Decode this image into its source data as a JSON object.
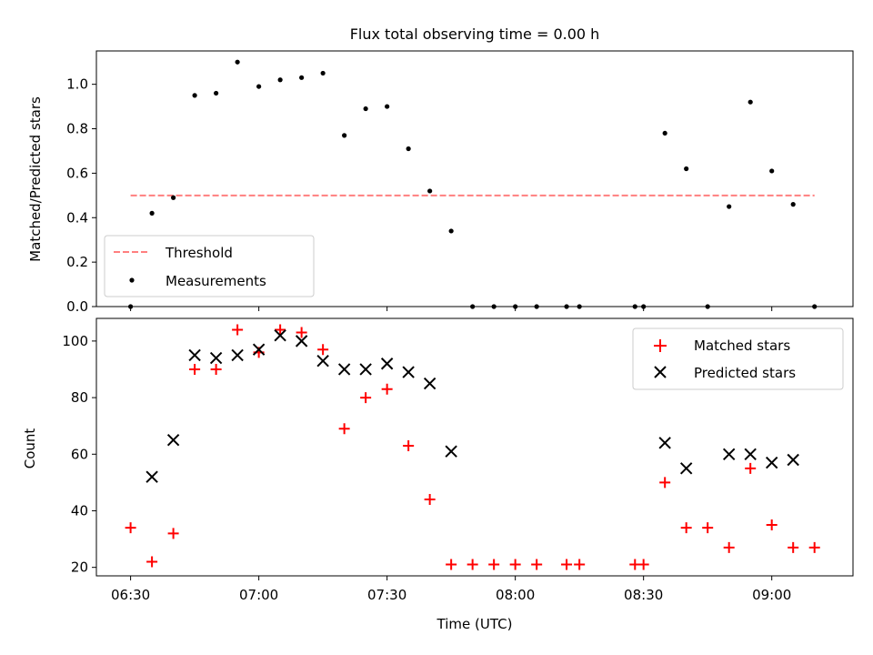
{
  "chart_data": [
    {
      "type": "scatter",
      "title": "Flux total observing time = 0.00 h",
      "xlabel": "",
      "ylabel": "Matched/Predicted stars",
      "ylim": [
        0,
        1.15
      ],
      "yticks": [
        "0.0",
        "0.2",
        "0.4",
        "0.6",
        "0.8",
        "1.0"
      ],
      "threshold": {
        "name": "Threshold",
        "value": 0.5,
        "x_start": "06:30",
        "x_end": "09:10",
        "color": "#ff7f7f"
      },
      "series": [
        {
          "name": "Measurements",
          "color": "#000000",
          "x": [
            "06:30",
            "06:35",
            "06:40",
            "06:45",
            "06:50",
            "06:55",
            "07:00",
            "07:05",
            "07:10",
            "07:15",
            "07:20",
            "07:25",
            "07:30",
            "07:35",
            "07:40",
            "07:45",
            "07:50",
            "07:55",
            "08:00",
            "08:05",
            "08:12",
            "08:15",
            "08:28",
            "08:30",
            "08:35",
            "08:40",
            "08:45",
            "08:50",
            "08:55",
            "09:00",
            "09:05",
            "09:10"
          ],
          "values": [
            0.0,
            0.42,
            0.49,
            0.95,
            0.96,
            1.1,
            0.99,
            1.02,
            1.03,
            1.05,
            0.77,
            0.89,
            0.9,
            0.71,
            0.52,
            0.34,
            0.0,
            0.0,
            0.0,
            0.0,
            0.0,
            0.0,
            0.0,
            0.0,
            0.78,
            0.62,
            0.0,
            0.45,
            0.92,
            0.61,
            0.46,
            0.0
          ]
        }
      ],
      "legend": {
        "position": "lower-left",
        "entries": [
          "Threshold",
          "Measurements"
        ]
      }
    },
    {
      "type": "scatter",
      "title": "",
      "xlabel": "Time (UTC)",
      "ylabel": "Count",
      "xlim": [
        "06:22",
        "09:19"
      ],
      "ylim": [
        17,
        108
      ],
      "yticks": [
        "20",
        "40",
        "60",
        "80",
        "100"
      ],
      "xticks": [
        "06:30",
        "07:00",
        "07:30",
        "08:00",
        "08:30",
        "09:00"
      ],
      "series": [
        {
          "name": "Matched stars",
          "color": "#ff0000",
          "marker": "plus",
          "x": [
            "06:30",
            "06:35",
            "06:40",
            "06:45",
            "06:50",
            "06:55",
            "07:00",
            "07:05",
            "07:10",
            "07:15",
            "07:20",
            "07:25",
            "07:30",
            "07:35",
            "07:40",
            "07:45",
            "07:50",
            "07:55",
            "08:00",
            "08:05",
            "08:12",
            "08:15",
            "08:28",
            "08:30",
            "08:35",
            "08:40",
            "08:45",
            "08:50",
            "08:55",
            "09:00",
            "09:05",
            "09:10"
          ],
          "values": [
            34,
            22,
            32,
            90,
            90,
            104,
            96,
            104,
            103,
            97,
            69,
            80,
            83,
            63,
            44,
            21,
            21,
            21,
            21,
            21,
            21,
            21,
            21,
            21,
            50,
            34,
            34,
            27,
            55,
            35,
            27,
            27
          ]
        },
        {
          "name": "Predicted stars",
          "color": "#000000",
          "marker": "x",
          "x": [
            "06:35",
            "06:40",
            "06:45",
            "06:50",
            "06:55",
            "07:00",
            "07:05",
            "07:10",
            "07:15",
            "07:20",
            "07:25",
            "07:30",
            "07:35",
            "07:40",
            "07:45",
            "08:35",
            "08:40",
            "08:50",
            "08:55",
            "09:00",
            "09:05"
          ],
          "values": [
            52,
            65,
            95,
            94,
            95,
            97,
            102,
            100,
            93,
            90,
            90,
            92,
            89,
            85,
            61,
            64,
            55,
            60,
            60,
            57,
            58
          ]
        }
      ],
      "legend": {
        "position": "upper-right",
        "entries": [
          "Matched stars",
          "Predicted stars"
        ]
      }
    }
  ]
}
